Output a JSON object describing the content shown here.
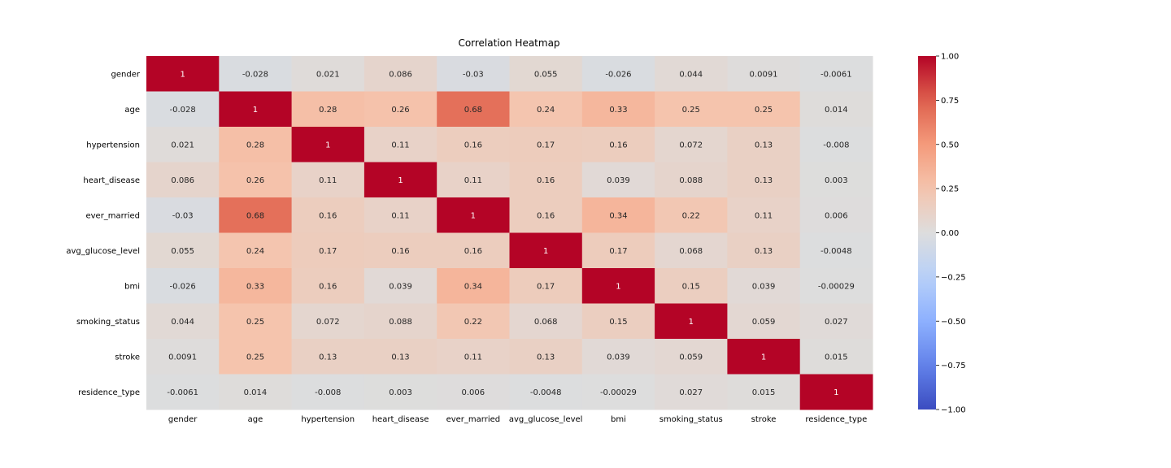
{
  "chart_data": {
    "type": "heatmap",
    "title": "Correlation Heatmap",
    "xlabel": "",
    "ylabel": "",
    "colormap": "coolwarm",
    "vmin": -1.0,
    "vmax": 1.0,
    "rows": [
      "gender",
      "age",
      "hypertension",
      "heart_disease",
      "ever_married",
      "avg_glucose_level",
      "bmi",
      "smoking_status",
      "stroke",
      "residence_type"
    ],
    "columns": [
      "gender",
      "age",
      "hypertension",
      "heart_disease",
      "ever_married",
      "avg_glucose_level",
      "bmi",
      "smoking_status",
      "stroke",
      "residence_type"
    ],
    "values": [
      [
        1,
        -0.028,
        0.021,
        0.086,
        -0.03,
        0.055,
        -0.026,
        0.044,
        0.0091,
        -0.0061
      ],
      [
        -0.028,
        1,
        0.28,
        0.26,
        0.68,
        0.24,
        0.33,
        0.25,
        0.25,
        0.014
      ],
      [
        0.021,
        0.28,
        1,
        0.11,
        0.16,
        0.17,
        0.16,
        0.072,
        0.13,
        -0.008
      ],
      [
        0.086,
        0.26,
        0.11,
        1,
        0.11,
        0.16,
        0.039,
        0.088,
        0.13,
        0.003
      ],
      [
        -0.03,
        0.68,
        0.16,
        0.11,
        1,
        0.16,
        0.34,
        0.22,
        0.11,
        0.006
      ],
      [
        0.055,
        0.24,
        0.17,
        0.16,
        0.16,
        1,
        0.17,
        0.068,
        0.13,
        -0.0048
      ],
      [
        -0.026,
        0.33,
        0.16,
        0.039,
        0.34,
        0.17,
        1,
        0.15,
        0.039,
        -0.00029
      ],
      [
        0.044,
        0.25,
        0.072,
        0.088,
        0.22,
        0.068,
        0.15,
        1,
        0.059,
        0.027
      ],
      [
        0.0091,
        0.25,
        0.13,
        0.13,
        0.11,
        0.13,
        0.039,
        0.059,
        1,
        0.015
      ],
      [
        -0.0061,
        0.014,
        -0.008,
        0.003,
        0.006,
        -0.0048,
        -0.00029,
        0.027,
        0.015,
        1
      ]
    ],
    "annotations": [
      [
        "1",
        "-0.028",
        "0.021",
        "0.086",
        "-0.03",
        "0.055",
        "-0.026",
        "0.044",
        "0.0091",
        "-0.0061"
      ],
      [
        "-0.028",
        "1",
        "0.28",
        "0.26",
        "0.68",
        "0.24",
        "0.33",
        "0.25",
        "0.25",
        "0.014"
      ],
      [
        "0.021",
        "0.28",
        "1",
        "0.11",
        "0.16",
        "0.17",
        "0.16",
        "0.072",
        "0.13",
        "-0.008"
      ],
      [
        "0.086",
        "0.26",
        "0.11",
        "1",
        "0.11",
        "0.16",
        "0.039",
        "0.088",
        "0.13",
        "0.003"
      ],
      [
        "-0.03",
        "0.68",
        "0.16",
        "0.11",
        "1",
        "0.16",
        "0.34",
        "0.22",
        "0.11",
        "0.006"
      ],
      [
        "0.055",
        "0.24",
        "0.17",
        "0.16",
        "0.16",
        "1",
        "0.17",
        "0.068",
        "0.13",
        "-0.0048"
      ],
      [
        "-0.026",
        "0.33",
        "0.16",
        "0.039",
        "0.34",
        "0.17",
        "1",
        "0.15",
        "0.039",
        "-0.00029"
      ],
      [
        "0.044",
        "0.25",
        "0.072",
        "0.088",
        "0.22",
        "0.068",
        "0.15",
        "1",
        "0.059",
        "0.027"
      ],
      [
        "0.0091",
        "0.25",
        "0.13",
        "0.13",
        "0.11",
        "0.13",
        "0.039",
        "0.059",
        "1",
        "0.015"
      ],
      [
        "-0.0061",
        "0.014",
        "-0.008",
        "0.003",
        "0.006",
        "-0.0048",
        "-0.00029",
        "0.027",
        "0.015",
        "1"
      ]
    ],
    "colorbar": {
      "ticks": [
        1.0,
        0.75,
        0.5,
        0.25,
        0.0,
        -0.25,
        -0.5,
        -0.75,
        -1.0
      ],
      "tick_labels": [
        "1.00",
        "0.75",
        "0.50",
        "0.25",
        "0.00",
        "−0.25",
        "−0.50",
        "−0.75",
        "−1.00"
      ]
    },
    "grid": false,
    "legend": "colorbar-right"
  }
}
